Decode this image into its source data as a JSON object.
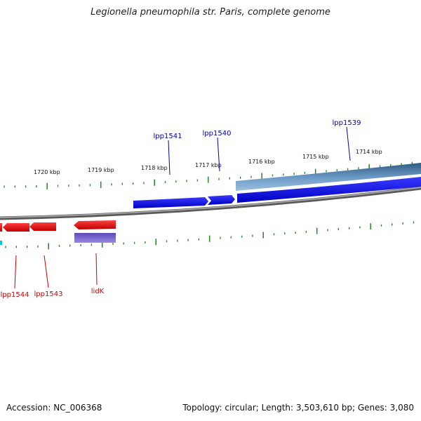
{
  "title": "Legionella pneumophila str. Paris, complete genome",
  "footer": {
    "accession": "Accession: NC_006368",
    "topology": "Topology: circular; Length: 3,503,610 bp; Genes: 3,080"
  },
  "ticks": {
    "labels": [
      "1720 kbp",
      "1719 kbp",
      "1718 kbp",
      "1717 kbp",
      "1716 kbp",
      "1715 kbp",
      "1714 kbp"
    ]
  },
  "genes": {
    "forward": [
      "lpp1541",
      "lpp1540",
      "lpp1539"
    ],
    "reverse": [
      "lpp1544",
      "lpp1543",
      "lidK"
    ]
  },
  "colors": {
    "forward_gene": "#0000ee",
    "reverse_gene": "#ee0000",
    "forward_label": "#0000aa",
    "reverse_label": "#cc0000",
    "tick": "#2e8b2e",
    "backbone": "#808080",
    "cds_forward_band": "#4a7fb0",
    "cds_reverse_band": "#7060c8"
  }
}
